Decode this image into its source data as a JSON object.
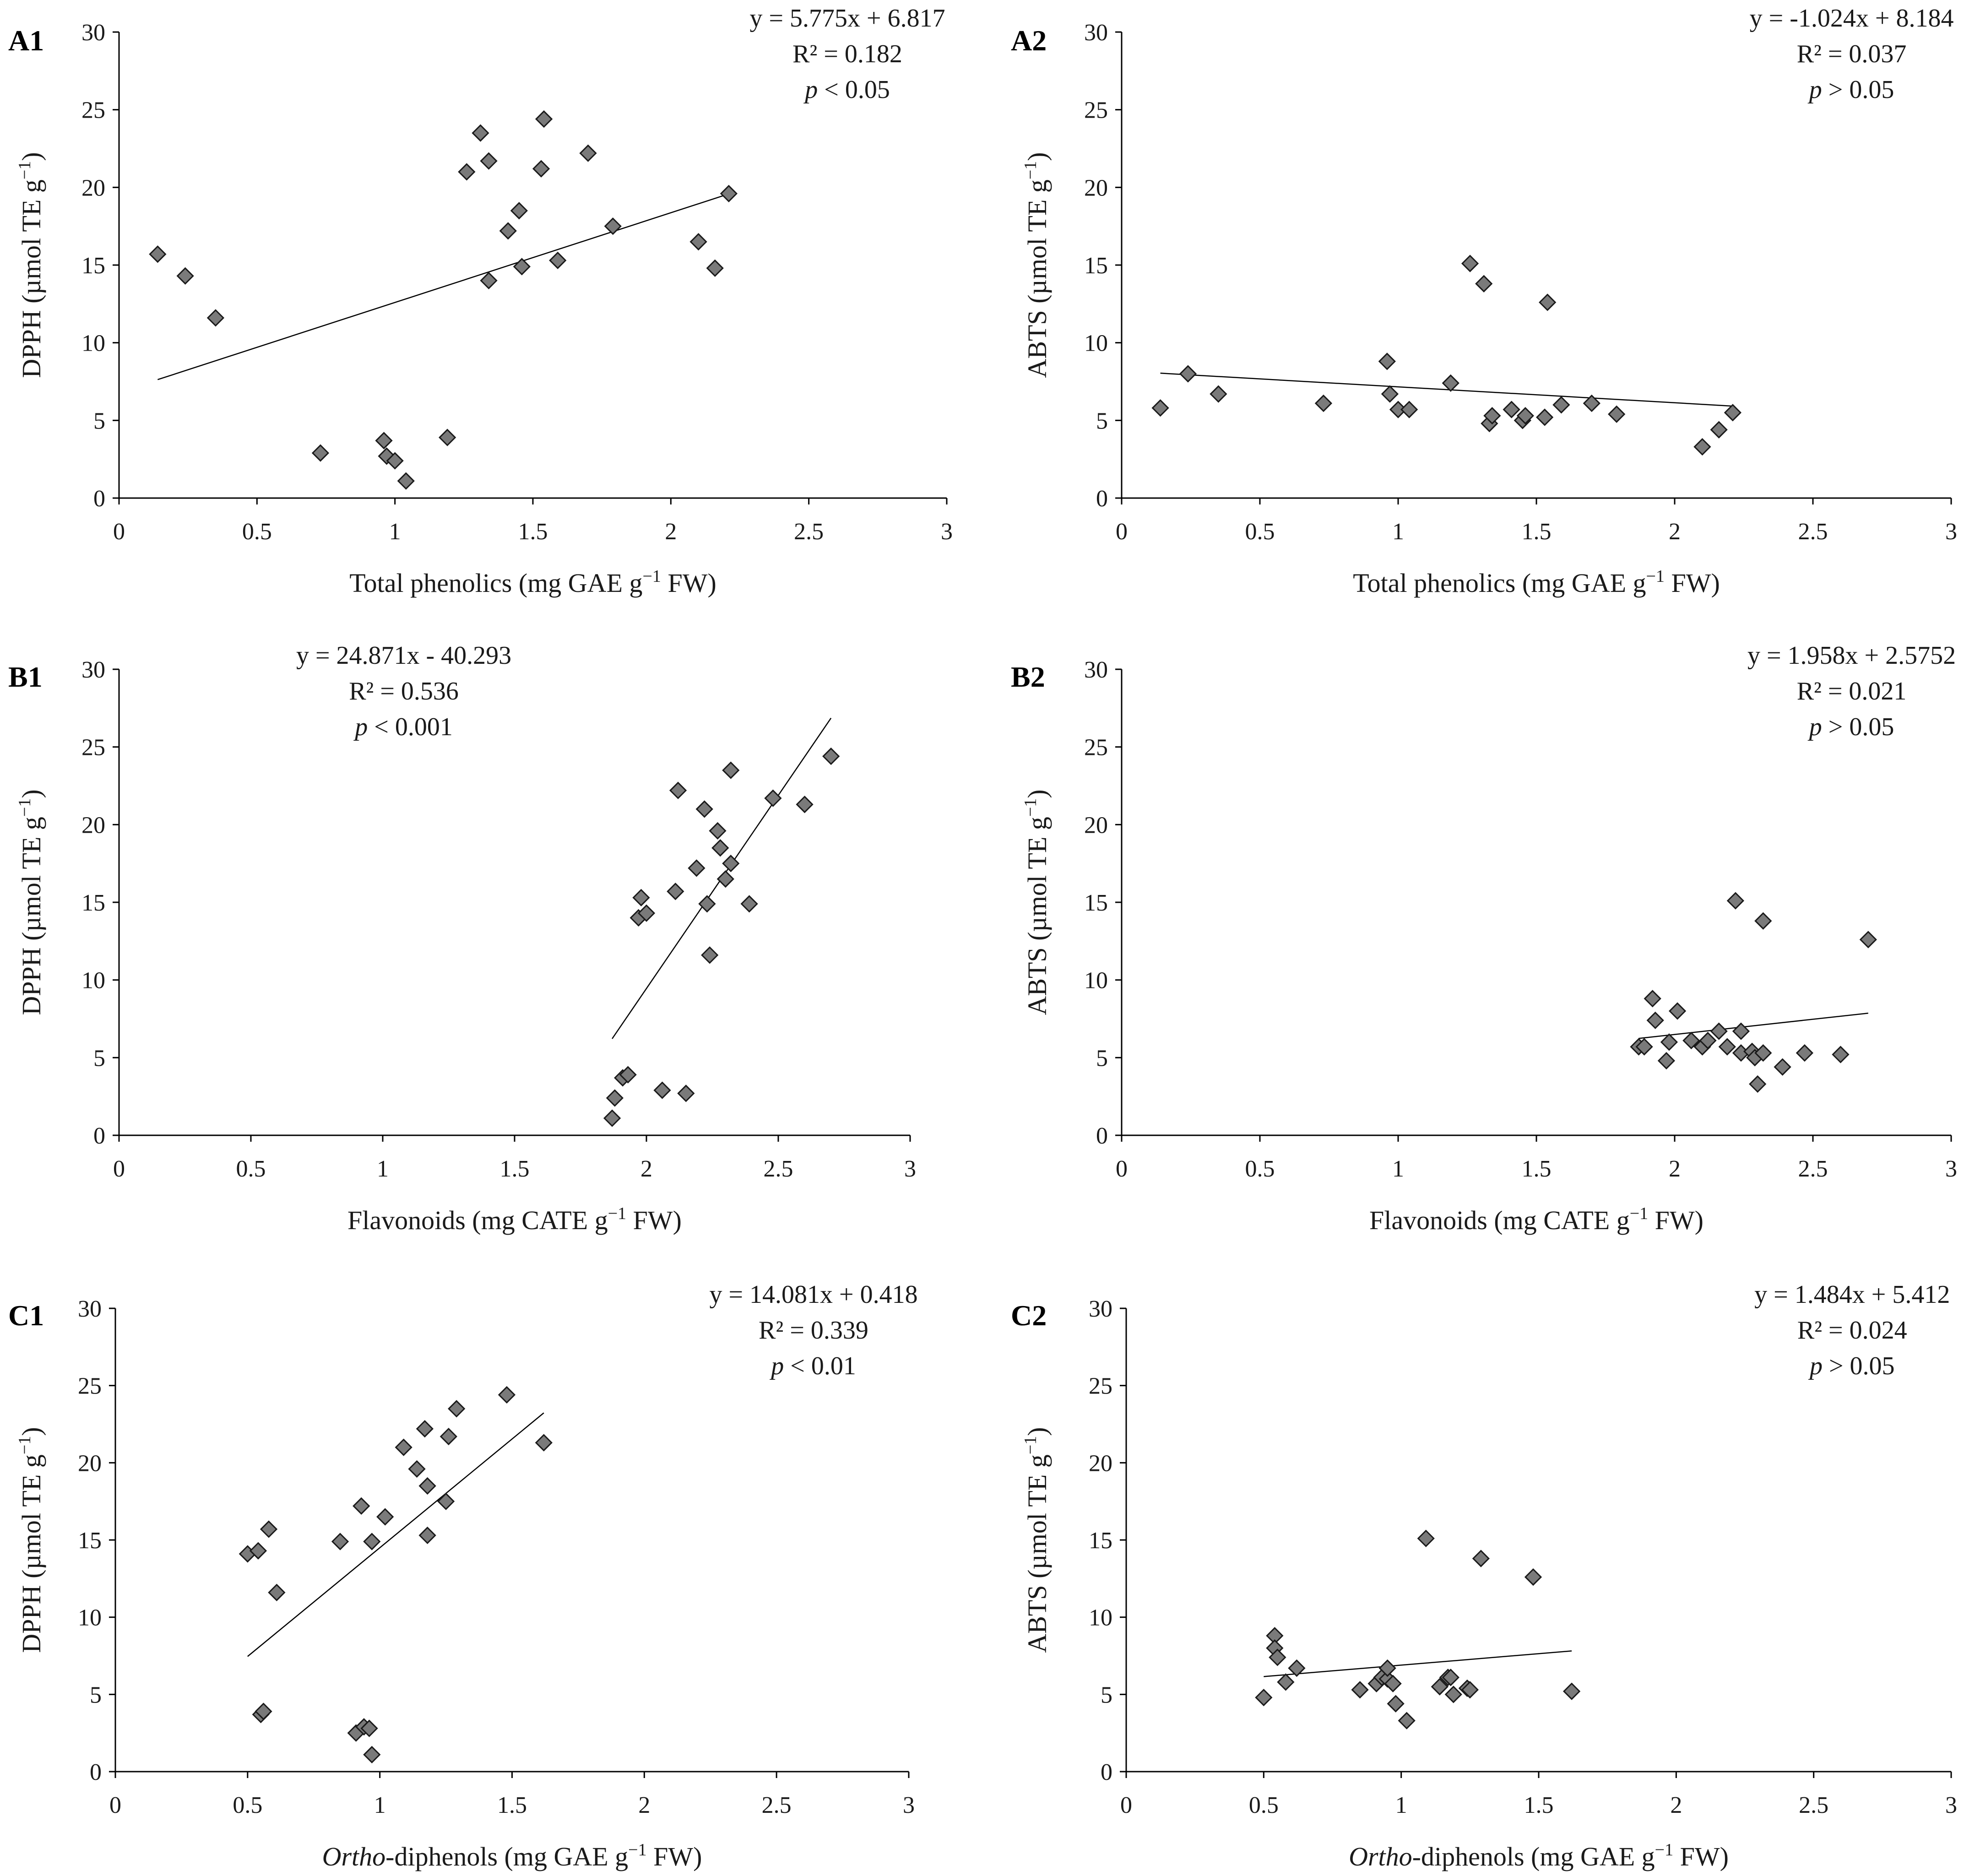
{
  "chart_data": [
    {
      "id": "A1",
      "panel_label": "A1",
      "type": "scatter",
      "xlabel_parts": [
        {
          "text": "Total phenolics (mg GAE g"
        },
        {
          "text": "−1",
          "sup": true
        },
        {
          "text": " FW)"
        }
      ],
      "ylabel_parts": [
        {
          "text": "DPPH (µmol TE g"
        },
        {
          "text": "−1",
          "sup": true
        },
        {
          "text": ")"
        }
      ],
      "xlim": [
        0,
        3
      ],
      "ylim": [
        0,
        30
      ],
      "xticks": [
        0,
        0.5,
        1,
        1.5,
        2,
        2.5,
        3
      ],
      "xtick_labels": [
        "0",
        "0.5",
        "1",
        "1.5",
        "2",
        "2.5",
        "3"
      ],
      "yticks": [
        0,
        5,
        10,
        15,
        20,
        25,
        30
      ],
      "ytick_labels": [
        "0",
        "5",
        "10",
        "15",
        "20",
        "25",
        "30"
      ],
      "x": [
        0.14,
        0.24,
        0.35,
        0.73,
        0.96,
        0.97,
        1.0,
        1.04,
        1.19,
        1.26,
        1.31,
        1.34,
        1.34,
        1.41,
        1.45,
        1.46,
        1.53,
        1.54,
        1.59,
        1.7,
        1.79,
        2.1,
        2.16,
        2.21
      ],
      "y": [
        15.7,
        14.3,
        11.6,
        2.9,
        3.7,
        2.7,
        2.4,
        1.1,
        3.9,
        21.0,
        23.5,
        14.0,
        21.7,
        17.2,
        18.5,
        14.9,
        21.2,
        24.4,
        15.3,
        22.2,
        17.5,
        16.5,
        14.8,
        19.6
      ],
      "trendline": {
        "slope": 5.775,
        "intercept": 6.817,
        "x_range": [
          0.14,
          2.21
        ]
      },
      "annotations": {
        "equation": "y = 5.775x + 6.817",
        "r2": "R² = 0.182",
        "p_italic": "p",
        "p_rest": " < 0.05"
      },
      "annotation_pos": "top-right"
    },
    {
      "id": "A2",
      "panel_label": "A2",
      "type": "scatter",
      "xlabel_parts": [
        {
          "text": "Total phenolics (mg GAE g"
        },
        {
          "text": "−1",
          "sup": true
        },
        {
          "text": " FW)"
        }
      ],
      "ylabel_parts": [
        {
          "text": "ABTS (µmol TE g"
        },
        {
          "text": "−1",
          "sup": true
        },
        {
          "text": ")"
        }
      ],
      "xlim": [
        0,
        3
      ],
      "ylim": [
        0,
        30
      ],
      "xticks": [
        0,
        0.5,
        1,
        1.5,
        2,
        2.5,
        3
      ],
      "xtick_labels": [
        "0",
        "0.5",
        "1",
        "1.5",
        "2",
        "2.5",
        "3"
      ],
      "yticks": [
        0,
        5,
        10,
        15,
        20,
        25,
        30
      ],
      "ytick_labels": [
        "0",
        "5",
        "10",
        "15",
        "20",
        "25",
        "30"
      ],
      "x": [
        0.14,
        0.24,
        0.35,
        0.73,
        0.96,
        0.97,
        1.0,
        1.04,
        1.19,
        1.26,
        1.31,
        1.33,
        1.34,
        1.41,
        1.45,
        1.46,
        1.53,
        1.54,
        1.59,
        1.7,
        1.79,
        2.1,
        2.16,
        2.21
      ],
      "y": [
        5.8,
        8.0,
        6.7,
        6.1,
        8.8,
        6.7,
        5.7,
        5.7,
        7.4,
        15.1,
        13.8,
        4.8,
        5.3,
        5.7,
        5.0,
        5.3,
        5.2,
        12.6,
        6.0,
        6.1,
        5.4,
        3.3,
        4.4,
        5.5
      ],
      "trendline": {
        "slope": -1.024,
        "intercept": 8.184,
        "x_range": [
          0.14,
          2.21
        ]
      },
      "annotations": {
        "equation": "y = -1.024x + 8.184",
        "r2": "R² = 0.037",
        "p_italic": "p",
        "p_rest": " > 0.05"
      },
      "annotation_pos": "top-right"
    },
    {
      "id": "B1",
      "panel_label": "B1",
      "type": "scatter",
      "xlabel_parts": [
        {
          "text": "Flavonoids (mg CATE g"
        },
        {
          "text": "−1",
          "sup": true
        },
        {
          "text": " FW)"
        }
      ],
      "ylabel_parts": [
        {
          "text": "DPPH (µmol TE g"
        },
        {
          "text": "−1",
          "sup": true
        },
        {
          "text": ")"
        }
      ],
      "xlim": [
        0,
        3
      ],
      "ylim": [
        0,
        30
      ],
      "xticks": [
        0,
        0.5,
        1,
        1.5,
        2,
        2.5,
        3
      ],
      "xtick_labels": [
        "0",
        "0.5",
        "1",
        "1.5",
        "2",
        "2.5",
        "3"
      ],
      "yticks": [
        0,
        5,
        10,
        15,
        20,
        25,
        30
      ],
      "ytick_labels": [
        "0",
        "5",
        "10",
        "15",
        "20",
        "25",
        "30"
      ],
      "x": [
        1.87,
        1.88,
        1.91,
        1.93,
        1.97,
        1.98,
        2.0,
        2.06,
        2.11,
        2.12,
        2.15,
        2.19,
        2.22,
        2.23,
        2.24,
        2.27,
        2.28,
        2.3,
        2.32,
        2.32,
        2.39,
        2.48,
        2.6,
        2.7
      ],
      "y": [
        1.1,
        2.4,
        3.7,
        3.9,
        14.0,
        15.3,
        14.3,
        2.9,
        15.7,
        22.2,
        2.7,
        17.2,
        21.0,
        14.9,
        11.6,
        19.6,
        18.5,
        16.5,
        17.5,
        23.5,
        14.9,
        21.7,
        21.3,
        24.4
      ],
      "trendline": {
        "slope": 24.871,
        "intercept": -40.293,
        "x_range": [
          1.87,
          2.7
        ]
      },
      "annotations": {
        "equation": "y = 24.871x - 40.293",
        "r2": "R² = 0.536",
        "p_italic": "p",
        "p_rest": " < 0.001"
      },
      "annotation_pos": "top-center"
    },
    {
      "id": "B2",
      "panel_label": "B2",
      "type": "scatter",
      "xlabel_parts": [
        {
          "text": "Flavonoids (mg CATE g"
        },
        {
          "text": "−1",
          "sup": true
        },
        {
          "text": " FW)"
        }
      ],
      "ylabel_parts": [
        {
          "text": "ABTS (µmol TE g"
        },
        {
          "text": "−1",
          "sup": true
        },
        {
          "text": ")"
        }
      ],
      "xlim": [
        0,
        3
      ],
      "ylim": [
        0,
        30
      ],
      "xticks": [
        0,
        0.5,
        1,
        1.5,
        2,
        2.5,
        3
      ],
      "xtick_labels": [
        "0",
        "0.5",
        "1",
        "1.5",
        "2",
        "2.5",
        "3"
      ],
      "yticks": [
        0,
        5,
        10,
        15,
        20,
        25,
        30
      ],
      "ytick_labels": [
        "0",
        "5",
        "10",
        "15",
        "20",
        "25",
        "30"
      ],
      "x": [
        1.87,
        1.89,
        1.92,
        1.93,
        1.97,
        1.98,
        2.01,
        2.06,
        2.1,
        2.12,
        2.16,
        2.19,
        2.22,
        2.24,
        2.24,
        2.28,
        2.29,
        2.3,
        2.32,
        2.32,
        2.39,
        2.47,
        2.6,
        2.7
      ],
      "y": [
        5.7,
        5.7,
        8.8,
        7.4,
        4.8,
        6.0,
        8.0,
        6.1,
        5.7,
        6.1,
        6.7,
        5.7,
        15.1,
        5.3,
        6.7,
        5.4,
        5.0,
        3.3,
        5.3,
        13.8,
        4.4,
        5.3,
        5.2,
        12.6
      ],
      "trendline": {
        "slope": 1.958,
        "intercept": 2.5752,
        "x_range": [
          1.87,
          2.7
        ]
      },
      "annotations": {
        "equation": "y = 1.958x + 2.5752",
        "r2": "R² = 0.021",
        "p_italic": "p",
        "p_rest": " > 0.05"
      },
      "annotation_pos": "top-right"
    },
    {
      "id": "C1",
      "panel_label": "C1",
      "type": "scatter",
      "xlabel_parts": [
        {
          "text": "Ortho",
          "italic": true
        },
        {
          "text": "-diphenols (mg GAE g"
        },
        {
          "text": "−1",
          "sup": true
        },
        {
          "text": " FW)"
        }
      ],
      "ylabel_parts": [
        {
          "text": "DPPH (µmol TE g"
        },
        {
          "text": "−1",
          "sup": true
        },
        {
          "text": ")"
        }
      ],
      "xlim": [
        0,
        3
      ],
      "ylim": [
        0,
        30
      ],
      "xticks": [
        0,
        0.5,
        1,
        1.5,
        2,
        2.5,
        3
      ],
      "xtick_labels": [
        "0",
        "0.5",
        "1",
        "1.5",
        "2",
        "2.5",
        "3"
      ],
      "yticks": [
        0,
        5,
        10,
        15,
        20,
        25,
        30
      ],
      "ytick_labels": [
        "0",
        "5",
        "10",
        "15",
        "20",
        "25",
        "30"
      ],
      "x": [
        0.5,
        0.54,
        0.55,
        0.56,
        0.58,
        0.61,
        0.85,
        0.91,
        0.93,
        0.94,
        0.96,
        0.97,
        0.97,
        1.02,
        1.09,
        1.14,
        1.17,
        1.18,
        1.18,
        1.25,
        1.26,
        1.29,
        1.48,
        1.62
      ],
      "y": [
        14.1,
        14.3,
        3.7,
        3.9,
        15.7,
        11.6,
        14.9,
        2.5,
        17.2,
        2.9,
        2.8,
        14.9,
        1.1,
        16.5,
        21.0,
        19.6,
        22.2,
        18.5,
        15.3,
        17.5,
        21.7,
        23.5,
        24.4,
        21.3
      ],
      "trendline": {
        "slope": 14.081,
        "intercept": 0.418,
        "x_range": [
          0.5,
          1.62
        ]
      },
      "annotations": {
        "equation": "y = 14.081x + 0.418",
        "r2": "R² = 0.339",
        "p_italic": "p",
        "p_rest": " < 0.01"
      },
      "annotation_pos": "top-right"
    },
    {
      "id": "C2",
      "panel_label": "C2",
      "type": "scatter",
      "xlabel_parts": [
        {
          "text": "Ortho",
          "italic": true
        },
        {
          "text": "-diphenols (mg GAE g"
        },
        {
          "text": "−1",
          "sup": true
        },
        {
          "text": " FW)"
        }
      ],
      "ylabel_parts": [
        {
          "text": "ABTS (µmol TE g"
        },
        {
          "text": "−1",
          "sup": true
        },
        {
          "text": ")"
        }
      ],
      "xlim": [
        0,
        3
      ],
      "ylim": [
        0,
        30
      ],
      "xticks": [
        0,
        0.5,
        1,
        1.5,
        2,
        2.5,
        3
      ],
      "xtick_labels": [
        "0",
        "0.5",
        "1",
        "1.5",
        "2",
        "2.5",
        "3"
      ],
      "yticks": [
        0,
        5,
        10,
        15,
        20,
        25,
        30
      ],
      "ytick_labels": [
        "0",
        "5",
        "10",
        "15",
        "20",
        "25",
        "30"
      ],
      "x": [
        0.5,
        0.54,
        0.54,
        0.55,
        0.58,
        0.62,
        0.85,
        0.91,
        0.93,
        0.95,
        0.95,
        0.97,
        0.98,
        1.02,
        1.09,
        1.14,
        1.17,
        1.18,
        1.19,
        1.24,
        1.25,
        1.29,
        1.48,
        1.62
      ],
      "y": [
        4.8,
        8.8,
        8.0,
        7.4,
        5.8,
        6.7,
        5.3,
        5.7,
        6.1,
        6.0,
        6.7,
        5.7,
        4.4,
        3.3,
        15.1,
        5.5,
        6.1,
        6.1,
        5.0,
        5.4,
        5.3,
        13.8,
        12.6,
        5.2
      ],
      "trendline": {
        "slope": 1.484,
        "intercept": 5.412,
        "x_range": [
          0.5,
          1.62
        ]
      },
      "annotations": {
        "equation": "y = 1.484x + 5.412",
        "r2": "R² = 0.024",
        "p_italic": "p",
        "p_rest": " > 0.05"
      },
      "annotation_pos": "top-right"
    }
  ]
}
